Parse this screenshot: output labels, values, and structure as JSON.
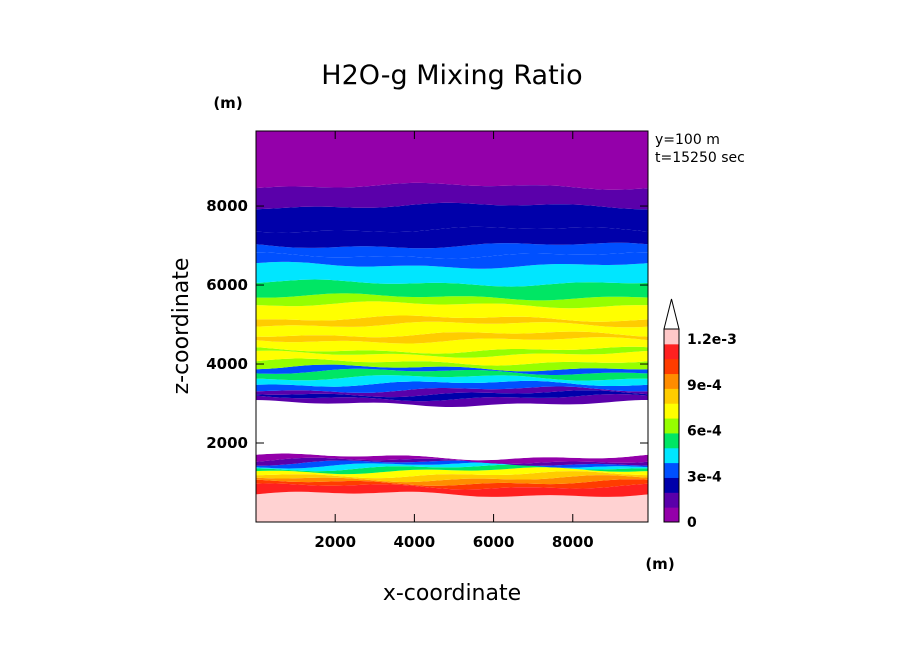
{
  "chart_data": {
    "type": "heatmap",
    "title": "H2O-g Mixing Ratio",
    "xlabel": "x-coordinate",
    "ylabel": "z-coordinate",
    "x_unit": "(m)",
    "y_unit": "(m)",
    "annotations": [
      "y=100 m",
      "t=15250 sec"
    ],
    "xlim": [
      0,
      9900
    ],
    "ylim": [
      0,
      9900
    ],
    "x_ticks": [
      2000,
      4000,
      6000,
      8000
    ],
    "y_ticks": [
      2000,
      4000,
      6000,
      8000
    ],
    "x_tick_labels": [
      "2000",
      "4000",
      "6000",
      "8000"
    ],
    "y_tick_labels": [
      "2000",
      "4000",
      "6000",
      "8000"
    ],
    "colorbar": {
      "levels": [
        0,
        0.00015,
        0.0003,
        0.00045,
        0.0006,
        0.00075,
        0.0009,
        0.00105,
        0.0012
      ],
      "colors": [
        "#9400aa",
        "#5a00aa",
        "#0000aa",
        "#0050ff",
        "#00e6ff",
        "#00e664",
        "#96ff00",
        "#ffff00",
        "#ffcc00",
        "#ff8c00",
        "#ff3c00",
        "#ff2020",
        "#ffc8c8"
      ],
      "tick_values": [
        0,
        0.0003,
        0.0006,
        0.0009,
        0.0012
      ],
      "tick_labels": [
        "0",
        "3e-4",
        "6e-4",
        "9e-4",
        "1.2e-3"
      ],
      "extend": "max"
    },
    "layers": [
      {
        "z_bottom": 0,
        "z_top": 700,
        "value": 0.0013,
        "color": "#ffd2d2"
      },
      {
        "z_bottom": 700,
        "z_top": 900,
        "value": 0.00125,
        "color": "#ff2020"
      },
      {
        "z_bottom": 900,
        "z_top": 1000,
        "value": 0.00115,
        "color": "#ff3c00"
      },
      {
        "z_bottom": 1000,
        "z_top": 1100,
        "value": 0.00105,
        "color": "#ff8c00"
      },
      {
        "z_bottom": 1100,
        "z_top": 1200,
        "value": 0.00095,
        "color": "#ffcc00"
      },
      {
        "z_bottom": 1200,
        "z_top": 1300,
        "value": 0.00085,
        "color": "#ffff00"
      },
      {
        "z_bottom": 1300,
        "z_top": 1370,
        "value": 0.00075,
        "color": "#00e664"
      },
      {
        "z_bottom": 1370,
        "z_top": 1430,
        "value": 0.00065,
        "color": "#00e6ff"
      },
      {
        "z_bottom": 1430,
        "z_top": 1490,
        "value": 0.0004,
        "color": "#0050ff"
      },
      {
        "z_bottom": 1490,
        "z_top": 1550,
        "value": 0.0002,
        "color": "#5a00aa"
      },
      {
        "z_bottom": 1550,
        "z_top": 1650,
        "value": 0.0001,
        "color": "#9400aa"
      },
      {
        "z_bottom": 1650,
        "z_top": 3000,
        "value": 0.0,
        "color": "#ffffff"
      },
      {
        "z_bottom": 3000,
        "z_top": 3150,
        "value": 0.0001,
        "color": "#5a00aa"
      },
      {
        "z_bottom": 3150,
        "z_top": 3250,
        "value": 0.0002,
        "color": "#0000aa"
      },
      {
        "z_bottom": 3250,
        "z_top": 3350,
        "value": 0.0001,
        "color": "#5a00aa"
      },
      {
        "z_bottom": 3350,
        "z_top": 3500,
        "value": 0.00035,
        "color": "#0050ff"
      },
      {
        "z_bottom": 3500,
        "z_top": 3650,
        "value": 0.00045,
        "color": "#00e6ff"
      },
      {
        "z_bottom": 3650,
        "z_top": 3800,
        "value": 0.00055,
        "color": "#00e664"
      },
      {
        "z_bottom": 3800,
        "z_top": 3900,
        "value": 0.0004,
        "color": "#0050ff"
      },
      {
        "z_bottom": 3900,
        "z_top": 4050,
        "value": 0.00065,
        "color": "#96ff00"
      },
      {
        "z_bottom": 4050,
        "z_top": 4250,
        "value": 0.00085,
        "color": "#ffff00"
      },
      {
        "z_bottom": 4250,
        "z_top": 4350,
        "value": 0.00075,
        "color": "#96ff00"
      },
      {
        "z_bottom": 4350,
        "z_top": 4600,
        "value": 0.00085,
        "color": "#ffff00"
      },
      {
        "z_bottom": 4600,
        "z_top": 4750,
        "value": 0.00095,
        "color": "#ffcc00"
      },
      {
        "z_bottom": 4750,
        "z_top": 5000,
        "value": 0.00085,
        "color": "#ffff00"
      },
      {
        "z_bottom": 5000,
        "z_top": 5150,
        "value": 0.00095,
        "color": "#ffcc00"
      },
      {
        "z_bottom": 5150,
        "z_top": 5500,
        "value": 0.00085,
        "color": "#ffff00"
      },
      {
        "z_bottom": 5500,
        "z_top": 5700,
        "value": 0.0007,
        "color": "#96ff00"
      },
      {
        "z_bottom": 5700,
        "z_top": 6050,
        "value": 0.0006,
        "color": "#00e664"
      },
      {
        "z_bottom": 6050,
        "z_top": 6500,
        "value": 0.00045,
        "color": "#00e6ff"
      },
      {
        "z_bottom": 6500,
        "z_top": 6750,
        "value": 0.00035,
        "color": "#0050ff"
      },
      {
        "z_bottom": 6750,
        "z_top": 7000,
        "value": 0.0003,
        "color": "#0050ff"
      },
      {
        "z_bottom": 7000,
        "z_top": 7400,
        "value": 0.0002,
        "color": "#0000aa"
      },
      {
        "z_bottom": 7400,
        "z_top": 8000,
        "value": 0.0002,
        "color": "#0000aa"
      },
      {
        "z_bottom": 8000,
        "z_top": 8500,
        "value": 0.0001,
        "color": "#5a00aa"
      },
      {
        "z_bottom": 8500,
        "z_top": 9900,
        "value": 5e-05,
        "color": "#9400aa"
      }
    ]
  },
  "colors": {
    "bg": "#ffffff",
    "axis": "#000000"
  }
}
